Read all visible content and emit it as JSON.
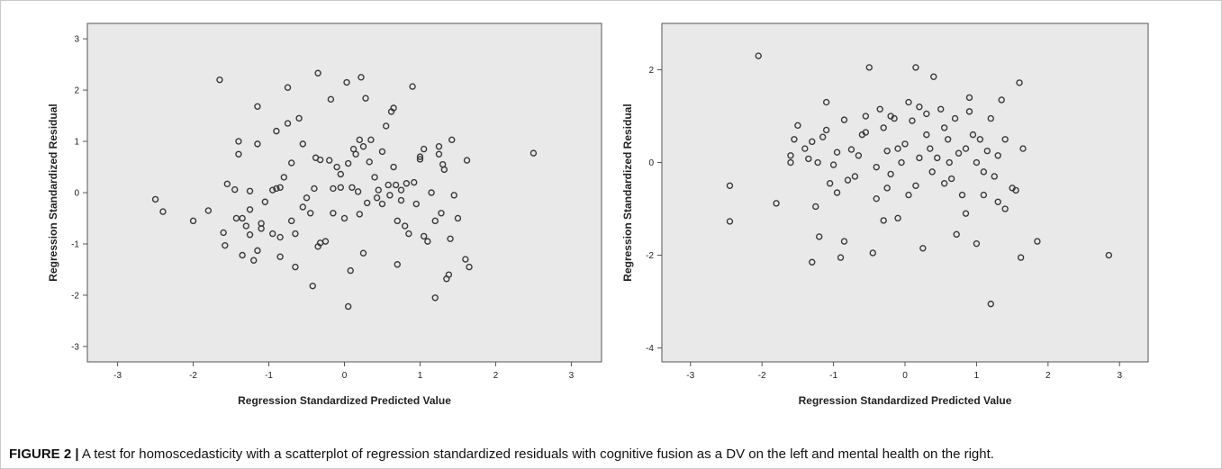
{
  "caption": {
    "label": "FIGURE 2 |",
    "text": " A test for homoscedasticity with a scatterplot of regression standardized residuals with cognitive fusion as a DV on the left and mental health on the right."
  },
  "colors": {
    "plot_bg": "#e9e9e9",
    "marker": "#3a3a3a",
    "axis": "#555555"
  },
  "chart_data": [
    {
      "type": "scatter",
      "title": "",
      "xlabel": "Regression Standardized Predicted Value",
      "ylabel": "Regression Standardized Residual",
      "xlim": [
        -3.4,
        3.4
      ],
      "ylim": [
        -3.3,
        3.3
      ],
      "xticks": [
        -3,
        -2,
        -1,
        0,
        1,
        2,
        3
      ],
      "yticks": [
        -3,
        -2,
        -1,
        0,
        1,
        2,
        3
      ],
      "xtick_labels": [
        "-3",
        "-2",
        "-1",
        "0",
        "1",
        "2",
        "3"
      ],
      "ytick_labels": [
        "-3",
        "-2",
        "-1",
        "0",
        "1",
        "2",
        "3"
      ],
      "grid": false,
      "points": [
        [
          -2.5,
          -0.13
        ],
        [
          -2.4,
          -0.37
        ],
        [
          -2.0,
          -0.55
        ],
        [
          -1.8,
          -0.35
        ],
        [
          -1.65,
          2.2
        ],
        [
          -1.6,
          -0.78
        ],
        [
          -1.58,
          -1.03
        ],
        [
          -1.55,
          0.17
        ],
        [
          -1.45,
          0.06
        ],
        [
          -1.43,
          -0.5
        ],
        [
          -1.4,
          0.75
        ],
        [
          -1.4,
          1.0
        ],
        [
          -1.35,
          -0.5
        ],
        [
          -1.35,
          -1.22
        ],
        [
          -1.3,
          -0.65
        ],
        [
          -1.25,
          -0.33
        ],
        [
          -1.25,
          0.03
        ],
        [
          -1.25,
          -0.82
        ],
        [
          -1.2,
          -1.32
        ],
        [
          -1.15,
          -1.13
        ],
        [
          -1.15,
          0.95
        ],
        [
          -1.15,
          1.68
        ],
        [
          -1.1,
          -0.6
        ],
        [
          -1.1,
          -0.7
        ],
        [
          -1.05,
          -0.18
        ],
        [
          -0.95,
          0.05
        ],
        [
          -0.95,
          -0.8
        ],
        [
          -0.9,
          0.08
        ],
        [
          -0.9,
          1.2
        ],
        [
          -0.85,
          -0.87
        ],
        [
          -0.85,
          0.1
        ],
        [
          -0.85,
          -1.25
        ],
        [
          -0.8,
          0.3
        ],
        [
          -0.75,
          1.35
        ],
        [
          -0.75,
          2.05
        ],
        [
          -0.7,
          -0.55
        ],
        [
          -0.7,
          0.58
        ],
        [
          -0.65,
          -0.8
        ],
        [
          -0.65,
          -1.45
        ],
        [
          -0.6,
          1.45
        ],
        [
          -0.55,
          0.95
        ],
        [
          -0.55,
          -0.28
        ],
        [
          -0.5,
          -0.1
        ],
        [
          -0.45,
          -0.4
        ],
        [
          -0.42,
          -1.82
        ],
        [
          -0.4,
          0.08
        ],
        [
          -0.38,
          0.68
        ],
        [
          -0.35,
          2.33
        ],
        [
          -0.35,
          -1.05
        ],
        [
          -0.32,
          -0.98
        ],
        [
          -0.32,
          0.64
        ],
        [
          -0.25,
          -0.95
        ],
        [
          -0.2,
          0.63
        ],
        [
          -0.18,
          1.82
        ],
        [
          -0.15,
          -0.4
        ],
        [
          -0.15,
          0.08
        ],
        [
          -0.1,
          0.5
        ],
        [
          -0.05,
          0.1
        ],
        [
          -0.05,
          0.36
        ],
        [
          0.0,
          -0.5
        ],
        [
          0.03,
          2.15
        ],
        [
          0.05,
          0.57
        ],
        [
          0.08,
          -1.52
        ],
        [
          0.05,
          -2.22
        ],
        [
          0.1,
          0.1
        ],
        [
          0.12,
          0.85
        ],
        [
          0.15,
          0.75
        ],
        [
          0.18,
          0.02
        ],
        [
          0.2,
          -0.42
        ],
        [
          0.2,
          1.03
        ],
        [
          0.22,
          2.25
        ],
        [
          0.25,
          0.9
        ],
        [
          0.25,
          -1.18
        ],
        [
          0.28,
          1.84
        ],
        [
          0.3,
          -0.2
        ],
        [
          0.33,
          0.6
        ],
        [
          0.35,
          1.03
        ],
        [
          0.4,
          0.3
        ],
        [
          0.43,
          -0.1
        ],
        [
          0.45,
          0.05
        ],
        [
          0.5,
          0.8
        ],
        [
          0.5,
          -0.22
        ],
        [
          0.55,
          1.3
        ],
        [
          0.58,
          0.15
        ],
        [
          0.6,
          -0.05
        ],
        [
          0.62,
          1.58
        ],
        [
          0.65,
          1.65
        ],
        [
          0.65,
          0.5
        ],
        [
          0.68,
          0.15
        ],
        [
          0.7,
          -0.55
        ],
        [
          0.7,
          -1.4
        ],
        [
          0.75,
          -0.15
        ],
        [
          0.75,
          0.05
        ],
        [
          0.8,
          -0.65
        ],
        [
          0.82,
          0.18
        ],
        [
          0.85,
          -0.8
        ],
        [
          0.9,
          2.07
        ],
        [
          0.92,
          0.2
        ],
        [
          0.95,
          -0.22
        ],
        [
          1.0,
          0.65
        ],
        [
          1.0,
          0.7
        ],
        [
          1.05,
          0.85
        ],
        [
          1.05,
          -0.85
        ],
        [
          1.1,
          -0.95
        ],
        [
          1.15,
          0.0
        ],
        [
          1.2,
          -0.55
        ],
        [
          1.2,
          -2.05
        ],
        [
          1.25,
          0.75
        ],
        [
          1.25,
          0.9
        ],
        [
          1.28,
          -0.4
        ],
        [
          1.3,
          0.55
        ],
        [
          1.32,
          0.45
        ],
        [
          1.35,
          -1.68
        ],
        [
          1.38,
          -1.6
        ],
        [
          1.4,
          -0.9
        ],
        [
          1.42,
          1.03
        ],
        [
          1.45,
          -0.05
        ],
        [
          1.5,
          -0.5
        ],
        [
          1.6,
          -1.3
        ],
        [
          1.62,
          0.63
        ],
        [
          1.65,
          -1.45
        ],
        [
          2.5,
          0.77
        ]
      ]
    },
    {
      "type": "scatter",
      "title": "",
      "xlabel": "Regression Standardized Predicted Value",
      "ylabel": "Regression Standardized Residual",
      "xlim": [
        -3.4,
        3.4
      ],
      "ylim": [
        -4.3,
        3.0
      ],
      "xticks": [
        -3,
        -2,
        -1,
        0,
        1,
        2,
        3
      ],
      "yticks": [
        -4,
        -2,
        0,
        2
      ],
      "xtick_labels": [
        "-3",
        "-2",
        "-1",
        "0",
        "1",
        "2",
        "3"
      ],
      "ytick_labels": [
        "-4",
        "-2",
        "0",
        "2"
      ],
      "grid": false,
      "points": [
        [
          -2.45,
          -0.5
        ],
        [
          -2.45,
          -1.27
        ],
        [
          -2.05,
          2.3
        ],
        [
          -1.8,
          -0.88
        ],
        [
          -1.6,
          0.15
        ],
        [
          -1.55,
          0.5
        ],
        [
          -1.5,
          0.8
        ],
        [
          -1.4,
          0.3
        ],
        [
          -1.35,
          0.08
        ],
        [
          -1.3,
          0.45
        ],
        [
          -1.3,
          -2.15
        ],
        [
          -1.25,
          -0.95
        ],
        [
          -1.22,
          0.0
        ],
        [
          -1.2,
          -1.6
        ],
        [
          -1.15,
          0.55
        ],
        [
          -1.1,
          1.3
        ],
        [
          -1.1,
          0.7
        ],
        [
          -1.05,
          -0.45
        ],
        [
          -1.0,
          -0.05
        ],
        [
          -0.95,
          0.22
        ],
        [
          -0.95,
          -0.65
        ],
        [
          -0.9,
          -2.05
        ],
        [
          -0.85,
          0.92
        ],
        [
          -0.85,
          -1.7
        ],
        [
          -0.8,
          -0.38
        ],
        [
          -0.75,
          0.28
        ],
        [
          -0.7,
          -0.3
        ],
        [
          -0.65,
          0.15
        ],
        [
          -0.6,
          0.6
        ],
        [
          -0.55,
          0.65
        ],
        [
          -0.5,
          2.05
        ],
        [
          -0.45,
          -1.95
        ],
        [
          -0.4,
          -0.78
        ],
        [
          -0.35,
          1.15
        ],
        [
          -0.3,
          0.75
        ],
        [
          -0.3,
          -1.25
        ],
        [
          -0.25,
          -0.55
        ],
        [
          -0.25,
          0.25
        ],
        [
          -0.2,
          1.0
        ],
        [
          -0.2,
          -0.25
        ],
        [
          -0.15,
          0.95
        ],
        [
          -0.1,
          0.3
        ],
        [
          -0.1,
          -1.2
        ],
        [
          -0.05,
          0.0
        ],
        [
          0.0,
          0.4
        ],
        [
          0.05,
          1.3
        ],
        [
          0.1,
          0.9
        ],
        [
          0.15,
          2.05
        ],
        [
          0.15,
          -0.5
        ],
        [
          0.2,
          1.2
        ],
        [
          0.2,
          0.1
        ],
        [
          0.25,
          -1.85
        ],
        [
          0.3,
          1.05
        ],
        [
          0.35,
          0.3
        ],
        [
          0.38,
          -0.2
        ],
        [
          0.4,
          1.85
        ],
        [
          0.45,
          0.1
        ],
        [
          0.5,
          1.15
        ],
        [
          0.55,
          0.75
        ],
        [
          0.55,
          -0.45
        ],
        [
          0.6,
          0.5
        ],
        [
          0.62,
          0.0
        ],
        [
          0.65,
          -0.35
        ],
        [
          0.7,
          0.95
        ],
        [
          0.72,
          -1.55
        ],
        [
          0.75,
          0.2
        ],
        [
          0.8,
          -0.7
        ],
        [
          0.85,
          0.3
        ],
        [
          0.85,
          -1.1
        ],
        [
          0.9,
          1.4
        ],
        [
          0.95,
          0.6
        ],
        [
          1.0,
          0.0
        ],
        [
          1.0,
          -1.75
        ],
        [
          1.05,
          0.5
        ],
        [
          1.1,
          -0.7
        ],
        [
          1.15,
          0.25
        ],
        [
          1.2,
          0.95
        ],
        [
          1.2,
          -3.05
        ],
        [
          1.25,
          -0.3
        ],
        [
          1.3,
          0.15
        ],
        [
          1.3,
          -0.85
        ],
        [
          1.35,
          1.35
        ],
        [
          1.4,
          0.5
        ],
        [
          1.4,
          -1.0
        ],
        [
          1.5,
          -0.55
        ],
        [
          1.55,
          -0.6
        ],
        [
          1.6,
          1.72
        ],
        [
          1.62,
          -2.05
        ],
        [
          1.65,
          0.3
        ],
        [
          1.85,
          -1.7
        ],
        [
          2.85,
          -2.0
        ],
        [
          -1.6,
          0.0
        ],
        [
          -0.55,
          1.0
        ],
        [
          0.05,
          -0.7
        ],
        [
          -0.4,
          -0.1
        ],
        [
          0.3,
          0.6
        ],
        [
          0.9,
          1.1
        ],
        [
          1.1,
          -0.2
        ]
      ]
    }
  ]
}
